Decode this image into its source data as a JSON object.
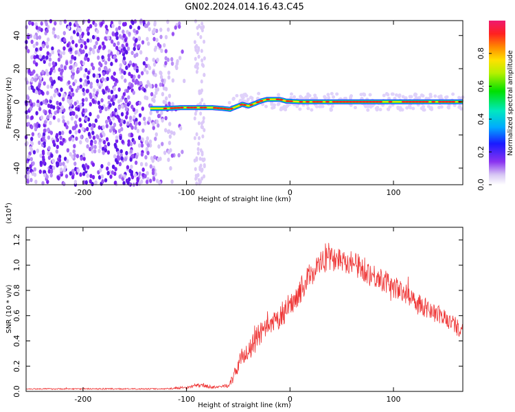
{
  "chart_data": [
    {
      "type": "heatmap",
      "title": "GN02.2024.014.16.43.C45",
      "xlabel": "Height of straight line (km)",
      "ylabel": "Frequency (Hz)",
      "xlim": [
        -255,
        167
      ],
      "ylim": [
        -50,
        49
      ],
      "xticks": [
        -200,
        -100,
        0,
        100
      ],
      "xtick_labels": [
        "-200",
        "-100",
        "0",
        "100"
      ],
      "yticks": [
        40,
        20,
        0,
        -20,
        -40
      ],
      "ytick_labels": [
        "40",
        "20",
        "0",
        "-20",
        "-40"
      ],
      "colorbar": {
        "label": "Normalized spectral amplitude",
        "ticks": [
          0.0,
          0.2,
          0.4,
          0.6,
          0.8
        ],
        "tick_labels": [
          "0.0",
          "0.2",
          "0.4",
          "0.6",
          "0.8"
        ],
        "range": [
          0,
          1
        ]
      },
      "ridge": {
        "x": [
          -135,
          -120,
          -105,
          -95,
          -85,
          -75,
          -65,
          -58,
          -52,
          -46,
          -40,
          -34,
          -28,
          -22,
          -16,
          -10,
          -4,
          10,
          30,
          50,
          70,
          90,
          110,
          130,
          150,
          167
        ],
        "freq": [
          -4,
          -4,
          -3.5,
          -3.5,
          -3.5,
          -3.5,
          -4,
          -4.5,
          -3,
          -1.5,
          -2.5,
          -1,
          0.5,
          1.5,
          1.5,
          1.5,
          0.5,
          0,
          0,
          0,
          0,
          0,
          0,
          0,
          0,
          0
        ]
      },
      "noise_region_x": [
        -255,
        -120
      ]
    },
    {
      "type": "line",
      "xlabel": "Height of straight line (km)",
      "ylabel": "SNR (10 * v/v)",
      "y_exponent": "(x10",
      "y_exponent_power": "4",
      "xlim": [
        -255,
        167
      ],
      "ylim": [
        0,
        1.3
      ],
      "xticks": [
        -200,
        -100,
        0,
        100
      ],
      "xtick_labels": [
        "-200",
        "-100",
        "0",
        "100"
      ],
      "yticks": [
        0.0,
        0.2,
        0.4,
        0.6,
        0.8,
        1.0,
        1.2
      ],
      "ytick_labels": [
        "0.0",
        "0.2",
        "0.4",
        "0.6",
        "0.8",
        "1.0",
        "1.2"
      ],
      "series": [
        {
          "color": "#ee3333",
          "x": [
            -255,
            -240,
            -220,
            -200,
            -180,
            -160,
            -140,
            -120,
            -100,
            -90,
            -80,
            -70,
            -60,
            -55,
            -50,
            -45,
            -40,
            -35,
            -30,
            -20,
            -10,
            0,
            10,
            20,
            30,
            40,
            50,
            60,
            70,
            80,
            90,
            100,
            110,
            120,
            130,
            140,
            150,
            160,
            167
          ],
          "values": [
            0.02,
            0.02,
            0.02,
            0.02,
            0.02,
            0.02,
            0.02,
            0.02,
            0.03,
            0.05,
            0.04,
            0.03,
            0.05,
            0.1,
            0.22,
            0.3,
            0.3,
            0.38,
            0.45,
            0.5,
            0.58,
            0.68,
            0.8,
            0.93,
            1.02,
            1.05,
            1.05,
            1.02,
            0.97,
            0.92,
            0.88,
            0.83,
            0.78,
            0.73,
            0.67,
            0.62,
            0.58,
            0.52,
            0.48
          ],
          "noise": [
            0.005,
            0.005,
            0.005,
            0.005,
            0.005,
            0.005,
            0.005,
            0.005,
            0.01,
            0.015,
            0.015,
            0.01,
            0.02,
            0.04,
            0.06,
            0.07,
            0.08,
            0.09,
            0.09,
            0.09,
            0.09,
            0.09,
            0.1,
            0.1,
            0.1,
            0.1,
            0.1,
            0.1,
            0.1,
            0.1,
            0.09,
            0.09,
            0.08,
            0.08,
            0.08,
            0.08,
            0.07,
            0.07,
            0.07
          ]
        }
      ]
    }
  ]
}
